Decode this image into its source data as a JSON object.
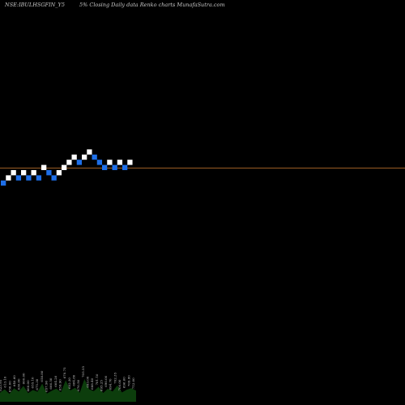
{
  "header": {
    "symbol": "NSE:IBULHSGFIN_Y5",
    "subtitle": "5% Closing Daily data Renko charts MunafaSutra.com"
  },
  "chart_data": {
    "type": "renko",
    "box_size_label": "5%",
    "colors": {
      "up": "#ffffff",
      "down": "#1e6fe8",
      "baseline": "#b06a2a",
      "volume": "#0c3d0c"
    },
    "bricks": [
      {
        "i": 0,
        "level": -2,
        "dir": "down"
      },
      {
        "i": 1,
        "level": -1,
        "dir": "up"
      },
      {
        "i": 2,
        "level": 0,
        "dir": "up"
      },
      {
        "i": 3,
        "level": -1,
        "dir": "down"
      },
      {
        "i": 4,
        "level": 0,
        "dir": "up"
      },
      {
        "i": 5,
        "level": -1,
        "dir": "down"
      },
      {
        "i": 6,
        "level": 0,
        "dir": "up"
      },
      {
        "i": 7,
        "level": -1,
        "dir": "down"
      },
      {
        "i": 8,
        "level": 1,
        "dir": "up"
      },
      {
        "i": 9,
        "level": 0,
        "dir": "down"
      },
      {
        "i": 10,
        "level": -1,
        "dir": "down"
      },
      {
        "i": 11,
        "level": 0,
        "dir": "up"
      },
      {
        "i": 12,
        "level": 1,
        "dir": "up"
      },
      {
        "i": 13,
        "level": 2,
        "dir": "up"
      },
      {
        "i": 14,
        "level": 3,
        "dir": "up"
      },
      {
        "i": 15,
        "level": 2,
        "dir": "down"
      },
      {
        "i": 16,
        "level": 3,
        "dir": "up"
      },
      {
        "i": 17,
        "level": 4,
        "dir": "up"
      },
      {
        "i": 18,
        "level": 3,
        "dir": "down"
      },
      {
        "i": 19,
        "level": 2,
        "dir": "down"
      },
      {
        "i": 20,
        "level": 1,
        "dir": "down"
      },
      {
        "i": 21,
        "level": 2,
        "dir": "up"
      },
      {
        "i": 22,
        "level": 1,
        "dir": "down"
      },
      {
        "i": 23,
        "level": 2,
        "dir": "up"
      },
      {
        "i": 24,
        "level": 1,
        "dir": "down"
      },
      {
        "i": 25,
        "level": 2,
        "dir": "up"
      }
    ],
    "baseline_level": 0.4,
    "volumes": [
      40,
      55,
      35,
      60,
      45,
      70,
      38,
      52,
      44,
      80,
      36,
      48,
      58,
      42,
      95,
      50,
      62,
      40,
      100,
      55,
      47,
      66,
      39,
      58,
      45,
      72,
      41,
      53,
      60,
      49
    ],
    "volume_labels": [
      "623.95",
      "613.10",
      "650.00",
      "640.60",
      "630.00",
      "600.00",
      "660.00",
      "655.10",
      "675.30",
      "658.80",
      "657.90",
      "666.50",
      "664.20",
      "659.90",
      "670.75",
      "682.30",
      "684.80",
      "676.50",
      "705.55",
      "693.00",
      "688.40",
      "701.10",
      "695.25",
      "690.00",
      "694.70",
      "702.35",
      "700.00",
      "696.60",
      "709.80",
      "712.00"
    ]
  }
}
